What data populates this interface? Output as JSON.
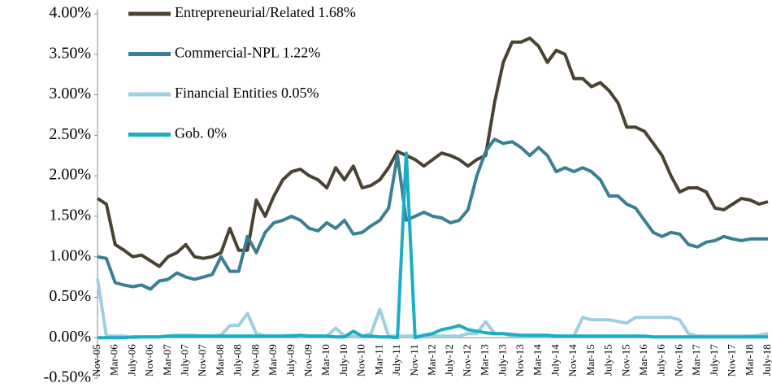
{
  "chart_data": {
    "type": "line",
    "categories": [
      "Nov-05",
      null,
      "Mar-06",
      null,
      "July-06",
      null,
      "Nov-06",
      null,
      "Mar-07",
      null,
      "July-07",
      null,
      "Nov-07",
      null,
      "Mar-08",
      null,
      "July-08",
      null,
      "Nov-08",
      null,
      "Mar-09",
      null,
      "July-09",
      null,
      "Nov-09",
      null,
      "Mar-10",
      null,
      "July-10",
      null,
      "Nov-10",
      null,
      "Mar-11",
      null,
      "July-11",
      null,
      "Nov-11",
      null,
      "Mar-12",
      null,
      "July-12",
      null,
      "Nov-12",
      null,
      "Mar-13",
      null,
      "July-13",
      null,
      "Nov-13",
      null,
      "Mar-14",
      null,
      "July-14",
      null,
      "Nov-14",
      null,
      "Mar-15",
      null,
      "July-15",
      null,
      "Nov-15",
      null,
      "Mar-16",
      null,
      "July-16",
      null,
      "Nov-16",
      null,
      "Mar-17",
      null,
      "July-17",
      null,
      "Nov-17",
      null,
      "Mar-18",
      null,
      "July-18"
    ],
    "series": [
      {
        "name": "Entrepreneurial/Related 1.68%",
        "color": "#4a4331",
        "values": [
          1.72,
          1.65,
          1.15,
          1.08,
          1.0,
          1.02,
          0.95,
          0.88,
          1.0,
          1.05,
          1.15,
          1.0,
          0.98,
          1.0,
          1.05,
          1.35,
          1.08,
          1.08,
          1.7,
          1.5,
          1.75,
          1.95,
          2.05,
          2.08,
          2.0,
          1.95,
          1.85,
          2.1,
          1.95,
          2.12,
          1.85,
          1.88,
          1.95,
          2.1,
          2.3,
          2.25,
          2.2,
          2.12,
          2.2,
          2.28,
          2.25,
          2.2,
          2.12,
          2.2,
          2.25,
          2.9,
          3.4,
          3.65,
          3.65,
          3.7,
          3.6,
          3.4,
          3.55,
          3.5,
          3.2,
          3.2,
          3.1,
          3.15,
          3.05,
          2.9,
          2.6,
          2.6,
          2.55,
          2.4,
          2.25,
          2.0,
          1.8,
          1.85,
          1.85,
          1.8,
          1.6,
          1.58,
          1.65,
          1.72,
          1.7,
          1.65,
          1.68
        ]
      },
      {
        "name": "Commercial-NPL 1.22%",
        "color": "#3a7f93",
        "values": [
          1.0,
          0.98,
          0.68,
          0.65,
          0.63,
          0.65,
          0.6,
          0.7,
          0.72,
          0.8,
          0.75,
          0.72,
          0.75,
          0.78,
          1.0,
          0.82,
          0.82,
          1.25,
          1.05,
          1.3,
          1.42,
          1.45,
          1.5,
          1.45,
          1.35,
          1.32,
          1.42,
          1.35,
          1.45,
          1.28,
          1.3,
          1.38,
          1.45,
          1.6,
          2.25,
          1.45,
          1.5,
          1.55,
          1.5,
          1.48,
          1.42,
          1.45,
          1.58,
          2.0,
          2.3,
          2.45,
          2.4,
          2.42,
          2.35,
          2.25,
          2.35,
          2.25,
          2.05,
          2.1,
          2.05,
          2.1,
          2.05,
          1.95,
          1.75,
          1.75,
          1.65,
          1.6,
          1.45,
          1.3,
          1.25,
          1.3,
          1.28,
          1.15,
          1.12,
          1.18,
          1.2,
          1.25,
          1.22,
          1.2,
          1.22,
          1.22,
          1.22
        ]
      },
      {
        "name": "Financial Entities 0.05%",
        "color": "#9fcfdf",
        "values": [
          0.73,
          0.02,
          0.02,
          0.02,
          0.0,
          0.01,
          0.01,
          0.01,
          0.02,
          0.03,
          0.03,
          0.03,
          0.02,
          0.02,
          0.03,
          0.15,
          0.15,
          0.3,
          0.05,
          0.02,
          0.02,
          0.02,
          0.03,
          0.02,
          0.02,
          0.02,
          0.02,
          0.12,
          0.02,
          0.02,
          0.02,
          0.05,
          0.35,
          0.02,
          0.02,
          0.02,
          0.02,
          0.02,
          0.02,
          0.02,
          0.02,
          0.02,
          0.05,
          0.05,
          0.2,
          0.05,
          0.05,
          0.02,
          0.02,
          0.02,
          0.02,
          0.02,
          0.02,
          0.02,
          0.02,
          0.25,
          0.22,
          0.22,
          0.22,
          0.2,
          0.18,
          0.25,
          0.25,
          0.25,
          0.25,
          0.25,
          0.22,
          0.05,
          0.02,
          0.02,
          0.02,
          0.02,
          0.02,
          0.02,
          0.02,
          0.03,
          0.05
        ]
      },
      {
        "name": "Gob. 0%",
        "color": "#1aaec3",
        "values": [
          0.0,
          0.0,
          0.0,
          0.0,
          0.01,
          0.01,
          0.01,
          0.01,
          0.02,
          0.02,
          0.02,
          0.02,
          0.02,
          0.02,
          0.02,
          0.02,
          0.02,
          0.02,
          0.02,
          0.02,
          0.02,
          0.02,
          0.02,
          0.03,
          0.02,
          0.02,
          0.02,
          0.01,
          0.01,
          0.08,
          0.02,
          0.02,
          0.01,
          0.01,
          0.0,
          2.28,
          0.0,
          0.03,
          0.05,
          0.1,
          0.12,
          0.15,
          0.1,
          0.08,
          0.06,
          0.05,
          0.05,
          0.04,
          0.03,
          0.03,
          0.03,
          0.03,
          0.02,
          0.02,
          0.02,
          0.02,
          0.02,
          0.02,
          0.02,
          0.02,
          0.02,
          0.02,
          0.02,
          0.01,
          0.01,
          0.01,
          0.01,
          0.01,
          0.01,
          0.01,
          0.01,
          0.01,
          0.01,
          0.01,
          0.01,
          0.01,
          0.01
        ]
      }
    ],
    "ylim": [
      -0.5,
      4.0
    ],
    "yticks": [
      {
        "value": 4.0,
        "label": "4.00%"
      },
      {
        "value": 3.5,
        "label": "3.50%"
      },
      {
        "value": 3.0,
        "label": "3.00%"
      },
      {
        "value": 2.5,
        "label": "2.50%"
      },
      {
        "value": 2.0,
        "label": "2.00%"
      },
      {
        "value": 1.5,
        "label": "1.50%"
      },
      {
        "value": 1.0,
        "label": "1.00%"
      },
      {
        "value": 0.5,
        "label": "0.50%"
      },
      {
        "value": 0.0,
        "label": "0.00%"
      },
      {
        "value": -0.5,
        "label": "-0.50%"
      }
    ],
    "grid": false,
    "legend": "top-left"
  }
}
